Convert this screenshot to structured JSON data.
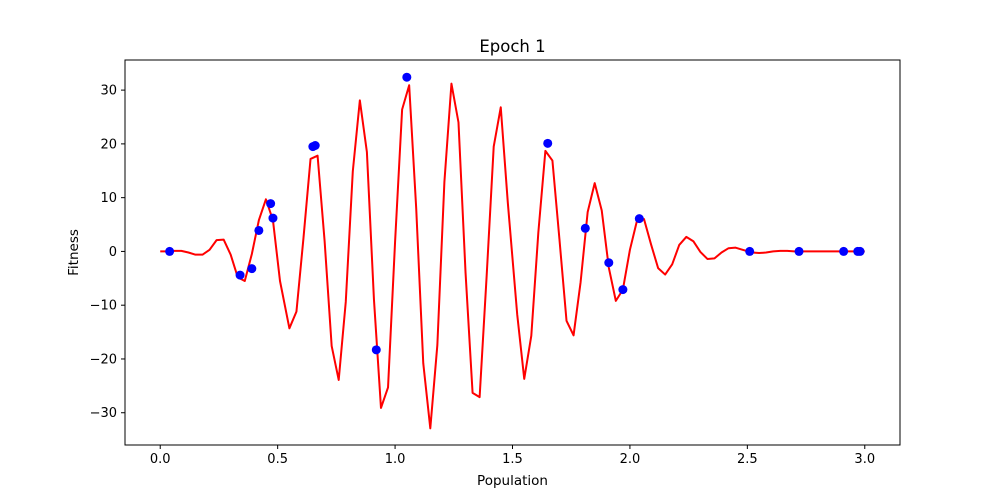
{
  "chart_data": {
    "type": "line",
    "title": "Epoch 1",
    "xlabel": "Population",
    "ylabel": "Fitness",
    "xlim": [
      -0.15,
      3.15
    ],
    "ylim": [
      -36.0,
      35.6
    ],
    "xticks": [
      0.0,
      0.5,
      1.0,
      1.5,
      2.0,
      2.5,
      3.0
    ],
    "xtick_labels": [
      "0.0",
      "0.5",
      "1.0",
      "1.5",
      "2.0",
      "2.5",
      "3.0"
    ],
    "yticks": [
      -30,
      -20,
      -10,
      0,
      10,
      20,
      30
    ],
    "ytick_labels": [
      "−30",
      "−20",
      "−10",
      "0",
      "10",
      "20",
      "30"
    ],
    "grid": false,
    "series": [
      {
        "type": "line",
        "color": "#ff0000",
        "x": [
          0.0,
          0.03,
          0.06,
          0.09,
          0.12,
          0.15,
          0.18,
          0.21,
          0.24,
          0.27,
          0.3,
          0.33,
          0.36,
          0.39,
          0.42,
          0.45,
          0.48,
          0.51,
          0.55,
          0.58,
          0.61,
          0.64,
          0.67,
          0.7,
          0.73,
          0.76,
          0.79,
          0.82,
          0.85,
          0.88,
          0.91,
          0.94,
          0.97,
          1.0,
          1.03,
          1.06,
          1.09,
          1.12,
          1.15,
          1.18,
          1.21,
          1.24,
          1.27,
          1.3,
          1.33,
          1.36,
          1.39,
          1.42,
          1.45,
          1.48,
          1.52,
          1.55,
          1.58,
          1.61,
          1.64,
          1.67,
          1.7,
          1.73,
          1.76,
          1.79,
          1.82,
          1.85,
          1.88,
          1.91,
          1.94,
          1.97,
          2.0,
          2.03,
          2.06,
          2.09,
          2.12,
          2.15,
          2.18,
          2.21,
          2.24,
          2.27,
          2.3,
          2.33,
          2.36,
          2.39,
          2.42,
          2.45,
          2.48,
          2.52,
          2.55,
          2.58,
          2.61,
          2.64,
          2.67,
          2.7,
          2.73,
          2.76,
          2.79,
          2.82,
          2.85,
          2.88,
          2.91,
          2.94,
          2.97,
          3.0
        ],
        "y": [
          0.0,
          0.0,
          0.1,
          0.1,
          -0.2,
          -0.6,
          -0.6,
          0.3,
          2.1,
          2.2,
          -0.6,
          -4.8,
          -5.5,
          -0.5,
          5.8,
          9.7,
          5.8,
          -5.5,
          -14.3,
          -11.2,
          2.5,
          17.2,
          17.8,
          1.9,
          -17.6,
          -23.9,
          -9.4,
          14.9,
          28.1,
          18.5,
          -8.9,
          -29.1,
          -25.3,
          1.8,
          26.4,
          30.9,
          8.0,
          -20.8,
          -32.9,
          -17.4,
          12.9,
          31.2,
          24.0,
          -3.9,
          -26.3,
          -27.1,
          -4.5,
          19.5,
          26.8,
          9.1,
          -11.7,
          -23.7,
          -15.7,
          3.5,
          18.7,
          16.9,
          2.2,
          -12.9,
          -15.6,
          -5.7,
          7.3,
          12.7,
          7.6,
          -3.0,
          -9.2,
          -7.1,
          0.3,
          5.7,
          6.0,
          1.3,
          -3.1,
          -4.3,
          -2.4,
          1.2,
          2.7,
          1.9,
          -0.1,
          -1.4,
          -1.3,
          -0.2,
          0.6,
          0.7,
          0.3,
          -0.2,
          -0.3,
          -0.2,
          0.0,
          0.1,
          0.1,
          0.0,
          0.0,
          0.0,
          0.0,
          0.0,
          0.0,
          0.0,
          0.0,
          0.0,
          0.0,
          0.0
        ]
      },
      {
        "type": "scatter",
        "color": "#0000ff",
        "x": [
          0.04,
          0.34,
          0.39,
          0.42,
          0.47,
          0.48,
          0.65,
          0.66,
          0.92,
          1.05,
          1.65,
          1.81,
          1.91,
          1.97,
          2.04,
          2.51,
          2.72,
          2.91,
          2.97,
          2.98
        ],
        "y": [
          0.0,
          -4.4,
          -3.2,
          3.9,
          8.9,
          6.2,
          19.5,
          19.7,
          -18.3,
          32.4,
          20.1,
          4.3,
          -2.1,
          -7.1,
          6.1,
          0.0,
          0.0,
          0.0,
          0.0,
          0.0
        ]
      }
    ]
  }
}
